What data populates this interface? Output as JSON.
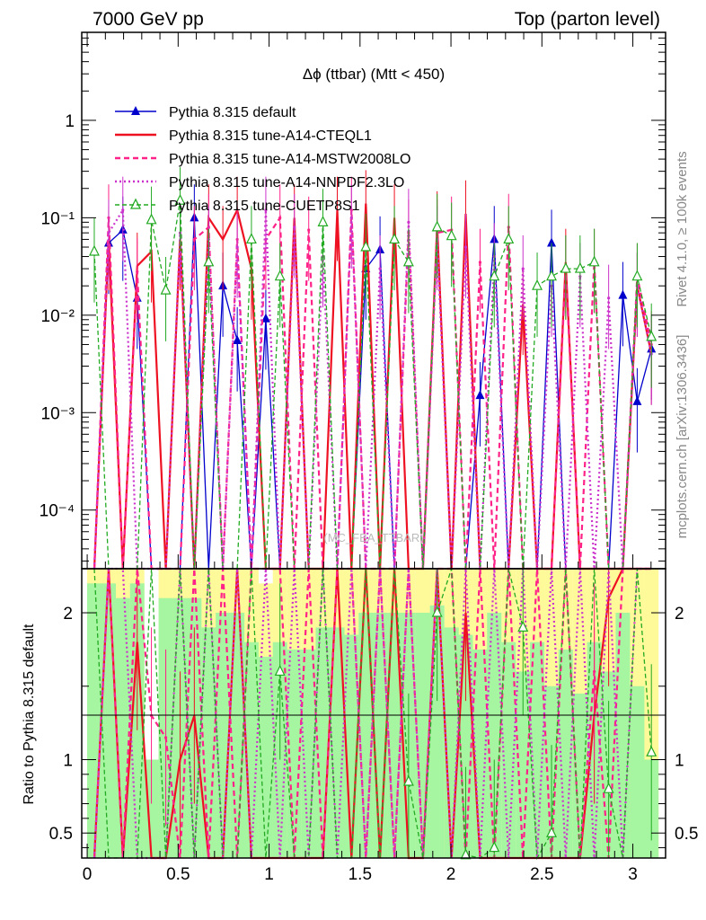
{
  "header": {
    "energy_label": "7000 GeV pp",
    "process_label": "Top (parton level)"
  },
  "side_labels": {
    "rivet": "Rivet 4.1.0, ≥ 100k events",
    "reference": "mcplots.cern.ch [arXiv:1306.3436]"
  },
  "watermark": "(MC_FBA_TTBAR)",
  "colors": {
    "default": "#0000cc",
    "cteql1": "#ee1122",
    "mstw": "#ff2288",
    "nnpdf": "#cc33cc",
    "cuetp8s1": "#22aa22",
    "band_green": "#a6f5a0",
    "band_yellow": "#fffa99"
  },
  "chart_data": [
    {
      "type": "line",
      "title": "Δϕ (ttbar) (Mtt < 450)",
      "xlabel": "",
      "ylabel": "",
      "yscale": "log",
      "xlim": [
        -0.03,
        3.18
      ],
      "ylim": [
        2.5e-05,
        8
      ],
      "y_tick_labels": [
        "10⁻⁴",
        "10⁻³",
        "10⁻²",
        "10⁻¹",
        "1"
      ],
      "x": [
        0.039,
        0.118,
        0.196,
        0.275,
        0.353,
        0.432,
        0.511,
        0.589,
        0.668,
        0.746,
        0.825,
        0.903,
        0.982,
        1.06,
        1.139,
        1.218,
        1.296,
        1.375,
        1.453,
        1.532,
        1.61,
        1.689,
        1.767,
        1.846,
        1.924,
        2.003,
        2.081,
        2.16,
        2.238,
        2.317,
        2.396,
        2.474,
        2.553,
        2.631,
        2.71,
        2.788,
        2.867,
        2.945,
        3.024,
        3.102
      ],
      "series": [
        {
          "name": "Pythia 8.315 default",
          "values": [
            0,
            0.055,
            0.075,
            0.015,
            0,
            0,
            0,
            0.1,
            0,
            0.02,
            0.0055,
            0,
            0.0092,
            0,
            0,
            0,
            0,
            0,
            0,
            0.03,
            0.047,
            0,
            0,
            0,
            0,
            0,
            0,
            0.0015,
            0.06,
            0,
            0,
            0,
            0.055,
            0,
            0,
            0,
            0,
            0.016,
            0.0013,
            0.0045
          ]
        },
        {
          "name": "Pythia 8.315 tune-A14-CTEQL1",
          "values": [
            0,
            0.06,
            0,
            0.032,
            0.045,
            0,
            0.06,
            0,
            0.1,
            0.06,
            0.12,
            0.03,
            0,
            0,
            0.1,
            0,
            0,
            0.12,
            0,
            0.14,
            0,
            0.1,
            0,
            0,
            0.085,
            0,
            0.11,
            0,
            0,
            0,
            0.013,
            0,
            0,
            0.035,
            0,
            0,
            0,
            0,
            0.02,
            0.004
          ]
        },
        {
          "name": "Pythia 8.315 tune-A14-MSTW2008LO",
          "values": [
            0,
            0.1,
            0,
            0.028,
            0,
            0,
            0,
            0.06,
            0.08,
            0,
            0.06,
            0,
            0.06,
            0.1,
            0,
            0.075,
            0,
            0,
            0.12,
            0,
            0,
            0,
            0.07,
            0,
            0.07,
            0.075,
            0,
            0.035,
            0,
            0.08,
            0,
            0,
            0,
            0.03,
            0,
            0.035,
            0,
            0,
            0.025,
            0.005
          ]
        },
        {
          "name": "Pythia 8.315 tune-A14-NNPDF2.3LO",
          "values": [
            0,
            0.07,
            0.12,
            0,
            0,
            0,
            0.07,
            0,
            0.06,
            0,
            0.05,
            0,
            0.12,
            0,
            0.08,
            0,
            0.04,
            0,
            0.1,
            0,
            0.03,
            0,
            0.09,
            0,
            0.06,
            0,
            0.05,
            0,
            0.04,
            0,
            0.03,
            0,
            0.02,
            0,
            0.025,
            0,
            0.015,
            0,
            0.02,
            0.004
          ]
        },
        {
          "name": "Pythia 8.315 tune-CUETP8S1",
          "values": [
            0.045,
            0,
            0,
            0,
            0.095,
            0.018,
            0.15,
            0,
            0.035,
            0,
            0,
            0.06,
            0,
            0.025,
            0,
            0,
            0.09,
            0,
            0,
            0.05,
            0,
            0.06,
            0.035,
            0,
            0.08,
            0.065,
            0,
            0,
            0.025,
            0.06,
            0,
            0.02,
            0.025,
            0.03,
            0.03,
            0.035,
            0,
            0,
            0.025,
            0.006
          ]
        }
      ]
    },
    {
      "type": "line",
      "title": "",
      "xlabel": "",
      "ylabel": "Ratio to Pythia 8.315 default",
      "xlim": [
        -0.03,
        3.18
      ],
      "ylim": [
        0.33,
        2.3
      ],
      "x_tick_labels": [
        "0",
        "0.5",
        "1",
        "1.5",
        "2",
        "2.5",
        "3"
      ],
      "y_tick_labels": [
        "0.5",
        "1",
        "2"
      ],
      "bands": {
        "green_upper": [
          2.2,
          2.2,
          2.1,
          2.2,
          1.0,
          2.1,
          2.1,
          2.1,
          1.9,
          2.0,
          2.0,
          1.8,
          1.7,
          1.8,
          1.75,
          1.75,
          1.9,
          1.9,
          1.85,
          2.0,
          2.0,
          2.0,
          2.0,
          2.0,
          2.05,
          1.9,
          1.85,
          1.75,
          2.0,
          1.8,
          1.6,
          1.8,
          1.5,
          1.75,
          1.45,
          1.8,
          1.6,
          2.0,
          1.5,
          1.0
        ],
        "yellow_upper": [
          2.3,
          2.3,
          2.3,
          2.3,
          1.0,
          2.3,
          2.3,
          2.3,
          2.3,
          2.3,
          2.3,
          2.3,
          2.2,
          2.3,
          2.3,
          2.3,
          2.3,
          2.3,
          2.3,
          2.3,
          2.3,
          2.3,
          2.3,
          2.3,
          2.3,
          2.3,
          2.3,
          2.3,
          2.3,
          2.3,
          2.3,
          2.3,
          2.3,
          2.3,
          2.3,
          2.3,
          2.3,
          2.3,
          2.3,
          2.3
        ]
      },
      "series": [
        {
          "name": "Pythia 8.315 tune-A14-CTEQL1",
          "values": [
            0.3,
            2.3,
            0.3,
            1.8,
            0.3,
            0.3,
            1.0,
            1.3,
            0.3,
            0.3,
            2.3,
            0.3,
            0.3,
            0.3,
            0.3,
            0.3,
            0.3,
            2.3,
            0.3,
            2.3,
            0.3,
            2.3,
            0.3,
            0.3,
            2.3,
            0.3,
            2.0,
            0.3,
            0.3,
            0.3,
            0.3,
            0.3,
            0.3,
            0.3,
            0.3,
            1.3,
            2.1,
            2.3,
            2.3,
            2.3
          ]
        },
        {
          "name": "Pythia 8.315 tune-A14-MSTW2008LO",
          "values": [
            0.3,
            2.3,
            0.3,
            2.3,
            1.3,
            1.15,
            0.3,
            2.3,
            0.3,
            2.3,
            0.3,
            2.3,
            2.3,
            2.3,
            0.3,
            2.3,
            0.3,
            2.3,
            2.3,
            0.3,
            2.3,
            0.3,
            2.3,
            0.3,
            2.3,
            2.3,
            0.3,
            2.3,
            0.3,
            2.3,
            0.3,
            2.3,
            0.3,
            2.3,
            0.3,
            1.6,
            0.3,
            2.3,
            2.3,
            2.3
          ]
        },
        {
          "name": "Pythia 8.315 tune-A14-NNPDF2.3LO",
          "values": [
            0.3,
            2.3,
            2.3,
            0.3,
            0.3,
            0.3,
            2.3,
            0.3,
            2.3,
            0.3,
            2.3,
            0.3,
            2.3,
            0.3,
            2.3,
            0.3,
            2.3,
            0.3,
            2.3,
            0.3,
            2.3,
            0.3,
            2.3,
            0.3,
            2.3,
            0.3,
            2.3,
            0.3,
            2.3,
            0.3,
            2.3,
            0.3,
            2.3,
            0.3,
            2.3,
            0.3,
            2.3,
            0.3,
            2.3,
            2.3
          ]
        },
        {
          "name": "Pythia 8.315 tune-CUETP8S1",
          "values": [
            2.3,
            0.3,
            0.3,
            0.3,
            2.3,
            0.3,
            2.3,
            0.3,
            2.3,
            0.3,
            0.3,
            2.3,
            0.3,
            1.6,
            0.3,
            0.3,
            2.3,
            0.3,
            0.3,
            2.3,
            0.3,
            2.3,
            0.85,
            0.3,
            2.0,
            2.3,
            0.35,
            0.3,
            0.4,
            2.3,
            1.9,
            0.3,
            0.5,
            2.3,
            0.3,
            2.3,
            0.8,
            0.3,
            2.3,
            1.05
          ]
        }
      ]
    }
  ]
}
